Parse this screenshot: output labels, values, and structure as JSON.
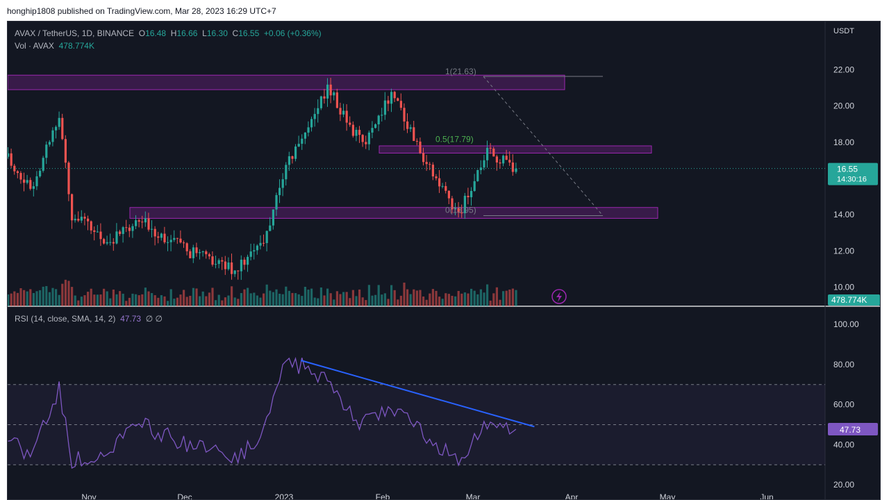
{
  "publish_line": "honghip1808 published on TradingView.com, Mar 28, 2023 16:29 UTC+7",
  "legend": {
    "symbol": "AVAX / TetherUS, 1D, BINANCE",
    "o_label": "O",
    "o": "16.48",
    "h_label": "H",
    "h": "16.66",
    "l_label": "L",
    "l": "16.30",
    "c_label": "C",
    "c": "16.55",
    "change": "+0.06 (+0.36%)",
    "vol_label": "Vol · AVAX",
    "vol": "478.774K"
  },
  "rsi_legend": {
    "label": "RSI (14, close, SMA, 14, 2)",
    "value": "47.73",
    "extra": "∅ ∅"
  },
  "axis_unit": "USDT",
  "price_badge": {
    "value": "16.55",
    "countdown": "14:30:16"
  },
  "volume_badge": "478.774K",
  "rsi_badge": "47.73",
  "fib_labels": {
    "top": "1(21.63)",
    "mid": "0.5(17.79)",
    "bottom": "0(13.95)"
  },
  "colors": {
    "up": "#26a69a",
    "down": "#ef5350",
    "background": "#131722",
    "zone": "#9c27b0",
    "rsi": "#7e57c2",
    "trendline": "#2962ff"
  },
  "chart_data": [
    {
      "type": "candlestick",
      "title": "AVAX / TetherUS, 1D, BINANCE",
      "ylabel": "USDT",
      "ylim": [
        9.0,
        23.5
      ],
      "yticks": [
        "22.00",
        "20.00",
        "18.00",
        "16.00",
        "14.00",
        "12.00",
        "10.00"
      ],
      "xticks": [
        "Nov",
        "Dec",
        "2023",
        "Feb",
        "Mar",
        "Apr",
        "May",
        "Jun"
      ],
      "last_price": 16.55,
      "key_closes": [
        {
          "date": "Oct 20",
          "close": 17.2
        },
        {
          "date": "Oct 27",
          "close": 15.4
        },
        {
          "date": "Nov 5",
          "close": 19.5
        },
        {
          "date": "Nov 9",
          "close": 14.0
        },
        {
          "date": "Nov 20",
          "close": 12.5
        },
        {
          "date": "Dec 1",
          "close": 13.6
        },
        {
          "date": "Dec 15",
          "close": 12.0
        },
        {
          "date": "Dec 30",
          "close": 11.0
        },
        {
          "date": "Jan 8",
          "close": 12.4
        },
        {
          "date": "Jan 14",
          "close": 16.2
        },
        {
          "date": "Jan 28",
          "close": 21.0
        },
        {
          "date": "Feb 8",
          "close": 17.8
        },
        {
          "date": "Feb 17",
          "close": 20.8
        },
        {
          "date": "Mar 1",
          "close": 16.5
        },
        {
          "date": "Mar 10",
          "close": 14.0
        },
        {
          "date": "Mar 19",
          "close": 17.4
        },
        {
          "date": "Mar 28",
          "close": 16.55
        }
      ],
      "zones": [
        {
          "from": 20.9,
          "to": 21.7
        },
        {
          "from": 17.4,
          "to": 17.8
        },
        {
          "from": 13.8,
          "to": 14.4
        }
      ],
      "fibonacci": [
        {
          "level": "1",
          "price": 21.63
        },
        {
          "level": "0.5",
          "price": 17.79
        },
        {
          "level": "0",
          "price": 13.95
        }
      ]
    },
    {
      "type": "bar",
      "title": "Vol · AVAX",
      "last_value": "478.774K"
    },
    {
      "type": "line",
      "title": "RSI (14, close, SMA, 14, 2)",
      "ylim": [
        20,
        105
      ],
      "yticks": [
        "100.00",
        "80.00",
        "60.00",
        "40.00",
        "20.00"
      ],
      "bands": [
        30,
        50,
        70
      ],
      "last_value": 47.73,
      "key_points": [
        {
          "date": "Oct 20",
          "value": 42
        },
        {
          "date": "Oct 27",
          "value": 35
        },
        {
          "date": "Nov 5",
          "value": 68
        },
        {
          "date": "Nov 9",
          "value": 32
        },
        {
          "date": "Nov 20",
          "value": 38
        },
        {
          "date": "Dec 1",
          "value": 50
        },
        {
          "date": "Dec 15",
          "value": 40
        },
        {
          "date": "Dec 30",
          "value": 33
        },
        {
          "date": "Jan 8",
          "value": 45
        },
        {
          "date": "Jan 14",
          "value": 78
        },
        {
          "date": "Jan 20",
          "value": 80
        },
        {
          "date": "Jan 28",
          "value": 72
        },
        {
          "date": "Feb 8",
          "value": 50
        },
        {
          "date": "Feb 17",
          "value": 59
        },
        {
          "date": "Mar 1",
          "value": 42
        },
        {
          "date": "Mar 10",
          "value": 33
        },
        {
          "date": "Mar 19",
          "value": 52
        },
        {
          "date": "Mar 28",
          "value": 47.73
        }
      ]
    }
  ]
}
